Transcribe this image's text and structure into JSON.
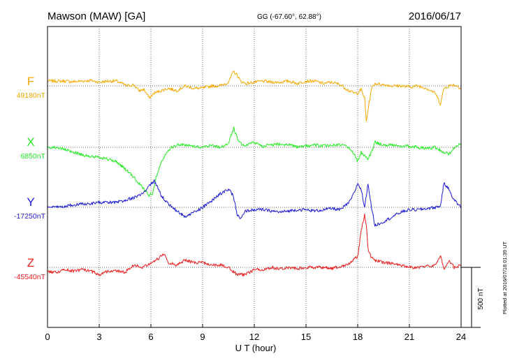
{
  "chart_data": {
    "type": "line",
    "title": "Mawson (MAW)  [GA]",
    "coordinates": "GG (-67.60°,  62.88°)",
    "date": "2016/06/17",
    "xlabel": "U T (hour)",
    "xlim": [
      0,
      24
    ],
    "xticks": [
      "0",
      "3",
      "6",
      "9",
      "12",
      "15",
      "18",
      "21",
      "24"
    ],
    "scale_bar": {
      "label": "500 nT",
      "value_nT": 500
    },
    "footnote": "Plotted at 2016/07/18 01:39 UT",
    "grid": true,
    "series": [
      {
        "name": "F",
        "baseline_label": "49180nT",
        "baseline": 49180,
        "color": "#f5a800",
        "x": [
          0,
          0.5,
          1,
          1.5,
          2,
          2.5,
          3,
          3.5,
          4,
          4.3,
          4.6,
          5,
          5.3,
          5.6,
          5.9,
          6.2,
          6.6,
          7,
          7.5,
          8,
          8.5,
          9,
          9.5,
          10,
          10.5,
          10.8,
          11,
          11.2,
          11.5,
          12,
          12.5,
          13,
          13.5,
          14,
          14.5,
          15,
          15.5,
          16,
          16.5,
          17,
          17.5,
          17.8,
          18,
          18.2,
          18.4,
          18.5,
          18.6,
          18.8,
          19,
          19.5,
          20,
          20.5,
          21,
          21.5,
          22,
          22.5,
          22.8,
          23,
          23.3,
          23.6,
          24
        ],
        "y": [
          40,
          40,
          40,
          35,
          40,
          45,
          30,
          40,
          40,
          20,
          0,
          10,
          -40,
          -30,
          -100,
          -60,
          -40,
          -20,
          -40,
          0,
          -20,
          -20,
          0,
          0,
          30,
          120,
          90,
          40,
          20,
          30,
          40,
          30,
          30,
          40,
          20,
          40,
          40,
          20,
          30,
          10,
          -40,
          -60,
          -60,
          -30,
          -100,
          -300,
          -200,
          -20,
          20,
          10,
          0,
          0,
          -10,
          0,
          -20,
          -60,
          -150,
          -20,
          0,
          10,
          -20
        ]
      },
      {
        "name": "X",
        "baseline_label": "6850nT",
        "baseline": 6850,
        "color": "#20ee20",
        "x": [
          0,
          0.5,
          1,
          1.5,
          2,
          2.5,
          3,
          3.5,
          4,
          4.5,
          5,
          5.3,
          5.6,
          5.9,
          6.1,
          6.3,
          6.6,
          7,
          7.5,
          8,
          8.5,
          9,
          9.5,
          10,
          10.5,
          10.8,
          11,
          11.2,
          11.5,
          12,
          12.5,
          13,
          13.5,
          14,
          14.5,
          15,
          15.5,
          16,
          16.5,
          17,
          17.5,
          17.8,
          18,
          18.2,
          18.5,
          18.6,
          18.8,
          19,
          19.5,
          20,
          20.5,
          21,
          21.5,
          22,
          22.5,
          23,
          23.3,
          23.6,
          24
        ],
        "y": [
          0,
          0,
          -20,
          -40,
          -60,
          -80,
          -80,
          -100,
          -120,
          -180,
          -250,
          -300,
          -350,
          -400,
          -380,
          -250,
          -120,
          -20,
          20,
          20,
          10,
          0,
          20,
          0,
          30,
          160,
          80,
          30,
          20,
          40,
          10,
          20,
          30,
          20,
          0,
          10,
          20,
          10,
          20,
          20,
          0,
          -60,
          -120,
          -40,
          -80,
          -100,
          -40,
          40,
          20,
          20,
          10,
          10,
          0,
          -10,
          0,
          -40,
          -60,
          0,
          30
        ]
      },
      {
        "name": "Y",
        "baseline_label": "-17250nT",
        "baseline": -17250,
        "color": "#1a1ad6",
        "x": [
          0,
          0.5,
          1,
          1.5,
          2,
          2.5,
          3,
          3.5,
          4,
          4.5,
          5,
          5.3,
          5.6,
          5.9,
          6.2,
          6.6,
          7,
          7.5,
          8,
          8.5,
          9,
          9.5,
          10,
          10.5,
          10.8,
          11,
          11.2,
          11.5,
          12,
          12.5,
          13,
          13.5,
          14,
          14.5,
          15,
          15.5,
          16,
          16.5,
          17,
          17.5,
          17.8,
          18,
          18.2,
          18.4,
          18.6,
          18.8,
          19,
          19.5,
          20,
          20.5,
          21,
          21.5,
          22,
          22.5,
          22.8,
          23,
          23.3,
          23.6,
          24
        ],
        "y": [
          0,
          0,
          10,
          20,
          30,
          30,
          40,
          40,
          40,
          60,
          80,
          100,
          120,
          180,
          220,
          100,
          30,
          -30,
          -80,
          -40,
          0,
          50,
          110,
          150,
          90,
          -60,
          -100,
          -30,
          -20,
          -20,
          -30,
          -40,
          -30,
          -20,
          -20,
          -30,
          -20,
          -10,
          -20,
          40,
          120,
          200,
          150,
          0,
          200,
          0,
          -150,
          -120,
          -80,
          -40,
          -20,
          -20,
          -10,
          0,
          10,
          200,
          150,
          60,
          0
        ]
      },
      {
        "name": "Z",
        "baseline_label": "-45540nT",
        "baseline": -45540,
        "color": "#ee1c1c",
        "x": [
          0,
          0.5,
          1,
          1.5,
          2,
          2.5,
          3,
          3.5,
          4,
          4.5,
          5,
          5.5,
          6,
          6.5,
          6.8,
          7,
          7.5,
          8,
          8.5,
          9,
          9.5,
          10,
          10.5,
          11,
          11.5,
          12,
          12.5,
          13,
          13.5,
          14,
          14.5,
          15,
          15.5,
          16,
          16.5,
          17,
          17.5,
          18,
          18.2,
          18.4,
          18.5,
          18.6,
          18.8,
          19,
          19.5,
          20,
          20.5,
          21,
          21.5,
          22,
          22.5,
          22.8,
          23,
          23.3,
          23.6,
          24
        ],
        "y": [
          -40,
          -40,
          -20,
          -30,
          -20,
          -30,
          -60,
          -30,
          -30,
          -40,
          20,
          0,
          40,
          80,
          120,
          40,
          20,
          60,
          40,
          40,
          20,
          20,
          0,
          -60,
          -60,
          -20,
          -20,
          0,
          -10,
          0,
          -10,
          0,
          0,
          0,
          -10,
          10,
          30,
          90,
          300,
          440,
          350,
          150,
          80,
          60,
          40,
          30,
          20,
          0,
          0,
          10,
          20,
          100,
          -20,
          60,
          0,
          20
        ]
      }
    ]
  }
}
